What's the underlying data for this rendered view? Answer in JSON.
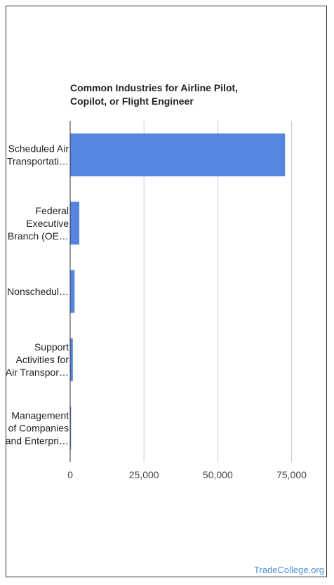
{
  "title_lines": [
    "Common Industries for Airline Pilot,",
    "Copilot, or Flight Engineer"
  ],
  "credit": "TradeCollege.org",
  "colors": {
    "bar": "#5585e0",
    "grid": "#cccccc",
    "axis": "#333333"
  },
  "chart_data": {
    "type": "bar",
    "orientation": "horizontal",
    "title": "Common Industries for Airline Pilot, Copilot, or Flight Engineer",
    "categories": [
      [
        "Scheduled Air",
        "Transportati…"
      ],
      [
        "Federal",
        "Executive",
        "Branch (OE…"
      ],
      [
        "Nonschedul…"
      ],
      [
        "Support",
        "Activities for",
        "Air Transpor…"
      ],
      [
        "Management",
        "of Companies",
        "and Enterpri…"
      ]
    ],
    "values": [
      72800,
      3100,
      1500,
      900,
      300
    ],
    "xlim": [
      0,
      87000
    ],
    "xticks": [
      0,
      25000,
      50000,
      75000
    ],
    "xtick_labels": [
      "0",
      "25,000",
      "50,000",
      "75,000"
    ],
    "grid": true,
    "legend": "none"
  }
}
